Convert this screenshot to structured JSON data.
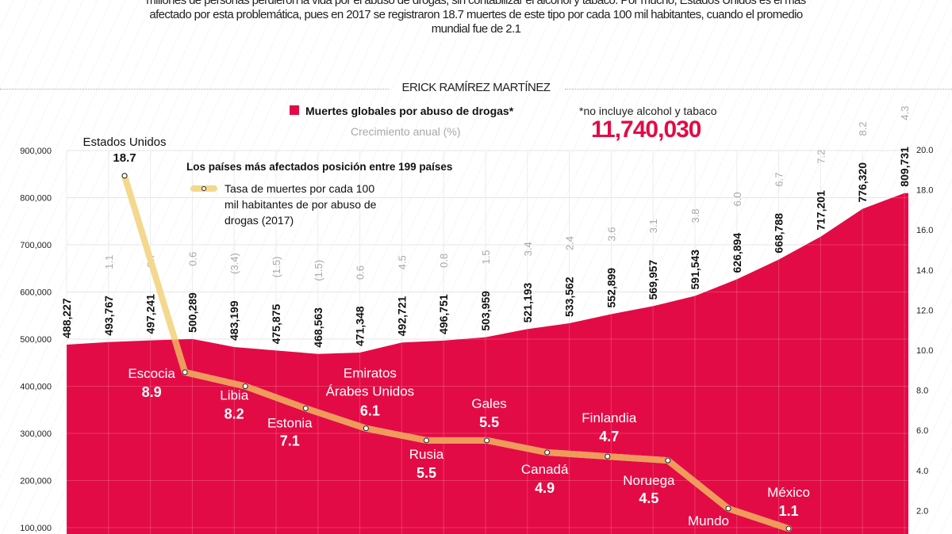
{
  "intro": {
    "lines": [
      "millones de personas perdieron la vida por el abuso de drogas, sin contabilizar el alcohol y tabaco. Por mucho, Estados Unidos es el más",
      "afectado por esta problemática, pues en 2017 se registraron 18.7 muertes de este tipo por cada 100 mil habitantes, cuando el promedio",
      "mundial fue de 2.1"
    ]
  },
  "byline": "ERICK RAMÍREZ MARTÍNEZ",
  "colors": {
    "area": "#e30b45",
    "line_above": "#f3d88e",
    "line_on_area": "#ef9b5c",
    "growth": "#a8a8a8",
    "total": "#e30b45"
  },
  "chart_data": {
    "type": "area+line",
    "legend": {
      "area_label": "Muertes globales por abuso de drogas*",
      "growth_label": "Crecimiento anual (%)",
      "footnote": "*no incluye alcohol y tabaco",
      "total": "11,740,030",
      "line_title": "Los países más afectados posición entre 199 países",
      "line_label": [
        "Tasa de muertes por cada 100",
        "mil habitantes de por abuso de",
        "drogas (2017)"
      ]
    },
    "left_axis": {
      "ticks": [
        "100,000",
        "200,000",
        "300,000",
        "400,000",
        "500,000",
        "600,000",
        "700,000",
        "800,000",
        "900,000"
      ],
      "range": [
        0,
        900000
      ]
    },
    "right_axis": {
      "ticks": [
        "2.0",
        "4.0",
        "6.0",
        "8.0",
        "10.0",
        "12.0",
        "14.0",
        "16.0",
        "18.0",
        "20.0"
      ],
      "range": [
        0,
        20
      ]
    },
    "grid": true,
    "deaths": {
      "values": [
        488227,
        493767,
        497241,
        500289,
        483199,
        475875,
        468563,
        471348,
        492721,
        496751,
        503959,
        521193,
        533562,
        552899,
        569957,
        591543,
        626894,
        668788,
        717201,
        776320,
        809731
      ],
      "labels": [
        "488,227",
        "493,767",
        "497,241",
        "500,289",
        "483,199",
        "475,875",
        "468,563",
        "471,348",
        "492,721",
        "496,751",
        "503,959",
        "521,193",
        "533,562",
        "552,899",
        "569,957",
        "591,543",
        "626,894",
        "668,788",
        "717,201",
        "776,320",
        "809,731"
      ],
      "growth": [
        "",
        "1.1",
        "0.7",
        "0.6",
        "(3.4)",
        "(1.5)",
        "(1.5)",
        "0.6",
        "4.5",
        "0.8",
        "1.5",
        "3.4",
        "2.4",
        "3.6",
        "3.1",
        "3.8",
        "6.0",
        "6.7",
        "7.2",
        "8.2",
        "4.3"
      ]
    },
    "rates": [
      {
        "country": "Estados Unidos",
        "value": 18.7,
        "label": "18.7"
      },
      {
        "country": "Escocia",
        "value": 8.9,
        "label": "8.9"
      },
      {
        "country": "Libia",
        "value": 8.2,
        "label": "8.2"
      },
      {
        "country": "Estonia",
        "value": 7.1,
        "label": "7.1"
      },
      {
        "country": "Emiratos Árabes Unidos",
        "value": 6.1,
        "label": "6.1"
      },
      {
        "country": "Rusia",
        "value": 5.5,
        "label": "5.5"
      },
      {
        "country": "Gales",
        "value": 5.5,
        "label": "5.5"
      },
      {
        "country": "Canadá",
        "value": 4.9,
        "label": "4.9"
      },
      {
        "country": "Finlandia",
        "value": 4.7,
        "label": "4.7"
      },
      {
        "country": "Noruega",
        "value": 4.5,
        "label": "4.5"
      },
      {
        "country": "Mundo",
        "value": 2.1,
        "label": ""
      },
      {
        "country": "México",
        "value": 1.1,
        "label": "1.1"
      }
    ]
  }
}
